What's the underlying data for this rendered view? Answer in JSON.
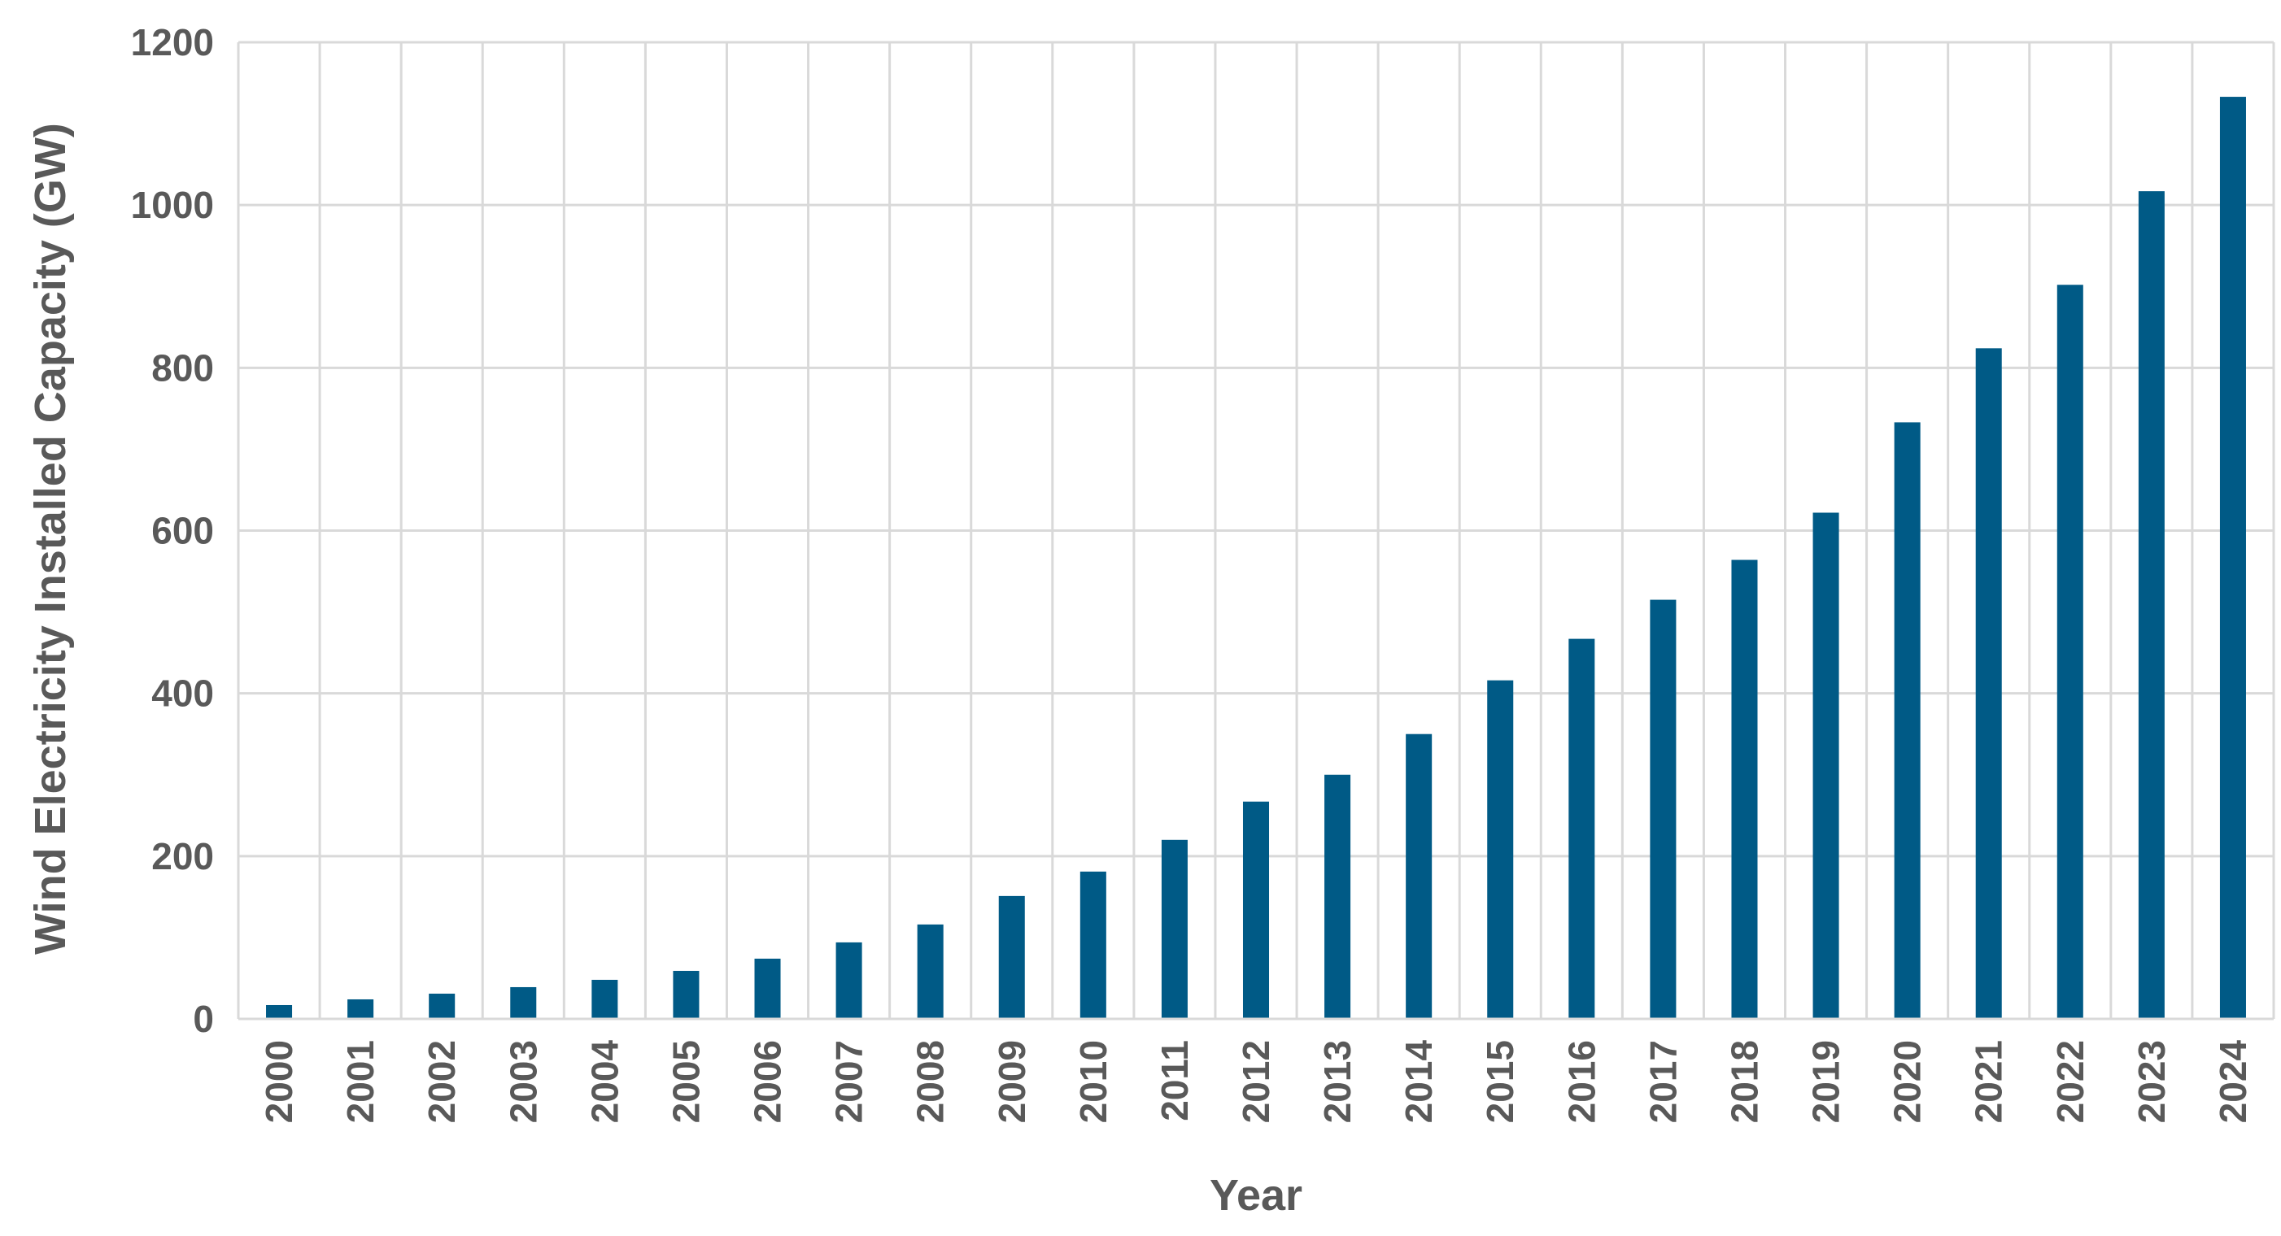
{
  "chart_data": {
    "type": "bar",
    "title": "",
    "xlabel": "Year",
    "ylabel": "Wind Electricity Installed Capacity (GW)",
    "ylim": [
      0,
      1200
    ],
    "yticks": [
      0,
      200,
      400,
      600,
      800,
      1000,
      1200
    ],
    "grid": true,
    "legend": "none",
    "categories": [
      "2000",
      "2001",
      "2002",
      "2003",
      "2004",
      "2005",
      "2006",
      "2007",
      "2008",
      "2009",
      "2010",
      "2011",
      "2012",
      "2013",
      "2014",
      "2015",
      "2016",
      "2017",
      "2018",
      "2019",
      "2020",
      "2021",
      "2022",
      "2023",
      "2024"
    ],
    "series": [
      {
        "values": [
          17,
          24,
          31,
          39,
          48,
          59,
          74,
          94,
          116,
          151,
          181,
          220,
          267,
          300,
          350,
          416,
          467,
          515,
          564,
          622,
          733,
          824,
          902,
          1017,
          1133
        ]
      }
    ]
  },
  "colors": {
    "bar": "#005a86",
    "grid": "#d9d9d9",
    "text": "#595959"
  }
}
